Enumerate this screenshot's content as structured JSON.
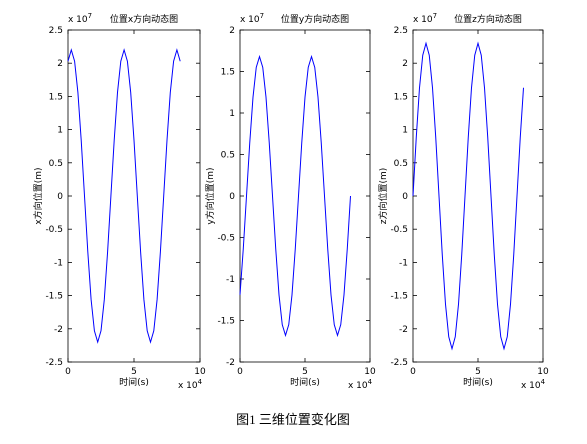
{
  "chart_data": [
    {
      "type": "line",
      "title": "位置x方向动态图",
      "xlabel": "时间(s)",
      "ylabel": "x方向位置(m)",
      "y_multiplier": {
        "text": "x 10",
        "power": "7"
      },
      "x_multiplier": {
        "text": "x 10",
        "power": "4"
      },
      "color": "#0000ff",
      "x": [
        0,
        0.25,
        0.5,
        0.75,
        1,
        1.25,
        1.5,
        1.75,
        2,
        2.25,
        2.5,
        2.75,
        3,
        3.25,
        3.5,
        3.75,
        4,
        4.25,
        4.5,
        4.75,
        5,
        5.25,
        5.5,
        5.75,
        6,
        6.25,
        6.5,
        6.75,
        7,
        7.25,
        7.5,
        7.75,
        8,
        8.25,
        8.5
      ],
      "values": [
        2.03,
        2.2,
        2.03,
        1.56,
        0.84,
        0,
        -0.84,
        -1.56,
        -2.03,
        -2.2,
        -2.03,
        -1.56,
        -0.84,
        0,
        0.84,
        1.56,
        2.03,
        2.2,
        2.03,
        1.56,
        0.84,
        0,
        -0.84,
        -1.56,
        -2.03,
        -2.2,
        -2.03,
        -1.56,
        -0.84,
        0,
        0.84,
        1.56,
        2.03,
        2.2,
        2.03
      ],
      "xlim": [
        0,
        10
      ],
      "xticks": [
        0,
        5,
        10
      ],
      "ylim": [
        -2.5,
        2.5
      ],
      "yticks": [
        -2.5,
        -2,
        -1.5,
        -1,
        -0.5,
        0,
        0.5,
        1,
        1.5,
        2,
        2.5
      ]
    },
    {
      "type": "line",
      "title": "位置y方向动态图",
      "xlabel": "时间(s)",
      "ylabel": "y方向位置(m)",
      "y_multiplier": {
        "text": "x 10",
        "power": "7"
      },
      "x_multiplier": {
        "text": "x 10",
        "power": "4"
      },
      "color": "#0000ff",
      "x": [
        0,
        0.25,
        0.5,
        0.75,
        1,
        1.25,
        1.5,
        1.75,
        2,
        2.25,
        2.5,
        2.75,
        3,
        3.25,
        3.5,
        3.75,
        4,
        4.25,
        4.5,
        4.75,
        5,
        5.25,
        5.5,
        5.75,
        6,
        6.25,
        6.5,
        6.75,
        7,
        7.25,
        7.5,
        7.75,
        8,
        8.25,
        8.5
      ],
      "values": [
        -1.19,
        -0.64,
        0,
        0.64,
        1.19,
        1.55,
        1.68,
        1.55,
        1.19,
        0.64,
        0,
        -0.64,
        -1.19,
        -1.55,
        -1.68,
        -1.55,
        -1.19,
        -0.64,
        0,
        0.64,
        1.19,
        1.55,
        1.68,
        1.55,
        1.19,
        0.64,
        0,
        -0.64,
        -1.19,
        -1.55,
        -1.68,
        -1.55,
        -1.19,
        -0.64,
        0
      ],
      "xlim": [
        0,
        10
      ],
      "xticks": [
        0,
        5,
        10
      ],
      "ylim": [
        -2,
        2
      ],
      "yticks": [
        -2,
        -1.5,
        -1,
        -0.5,
        0,
        0.5,
        1,
        1.5,
        2
      ]
    },
    {
      "type": "line",
      "title": "位置z方向动态图",
      "xlabel": "时间(s)",
      "ylabel": "z方向位置(m)",
      "y_multiplier": {
        "text": "x 10",
        "power": "7"
      },
      "x_multiplier": {
        "text": "x 10",
        "power": "4"
      },
      "color": "#0000ff",
      "x": [
        0,
        0.25,
        0.5,
        0.75,
        1,
        1.25,
        1.5,
        1.75,
        2,
        2.25,
        2.5,
        2.75,
        3,
        3.25,
        3.5,
        3.75,
        4,
        4.25,
        4.5,
        4.75,
        5,
        5.25,
        5.5,
        5.75,
        6,
        6.25,
        6.5,
        6.75,
        7,
        7.25,
        7.5,
        7.75,
        8,
        8.25,
        8.5
      ],
      "values": [
        0,
        0.88,
        1.63,
        2.12,
        2.3,
        2.12,
        1.63,
        0.88,
        0,
        -0.88,
        -1.63,
        -2.12,
        -2.3,
        -2.12,
        -1.63,
        -0.88,
        0,
        0.88,
        1.63,
        2.12,
        2.3,
        2.12,
        1.63,
        0.88,
        0,
        -0.88,
        -1.63,
        -2.12,
        -2.3,
        -2.12,
        -1.63,
        -0.88,
        0,
        0.88,
        1.63
      ],
      "xlim": [
        0,
        10
      ],
      "xticks": [
        0,
        5,
        10
      ],
      "ylim": [
        -2.5,
        2.5
      ],
      "yticks": [
        -2.5,
        -2,
        -1.5,
        -1,
        -0.5,
        0,
        0.5,
        1,
        1.5,
        2,
        2.5
      ]
    }
  ],
  "caption": "图1 三维位置变化图"
}
